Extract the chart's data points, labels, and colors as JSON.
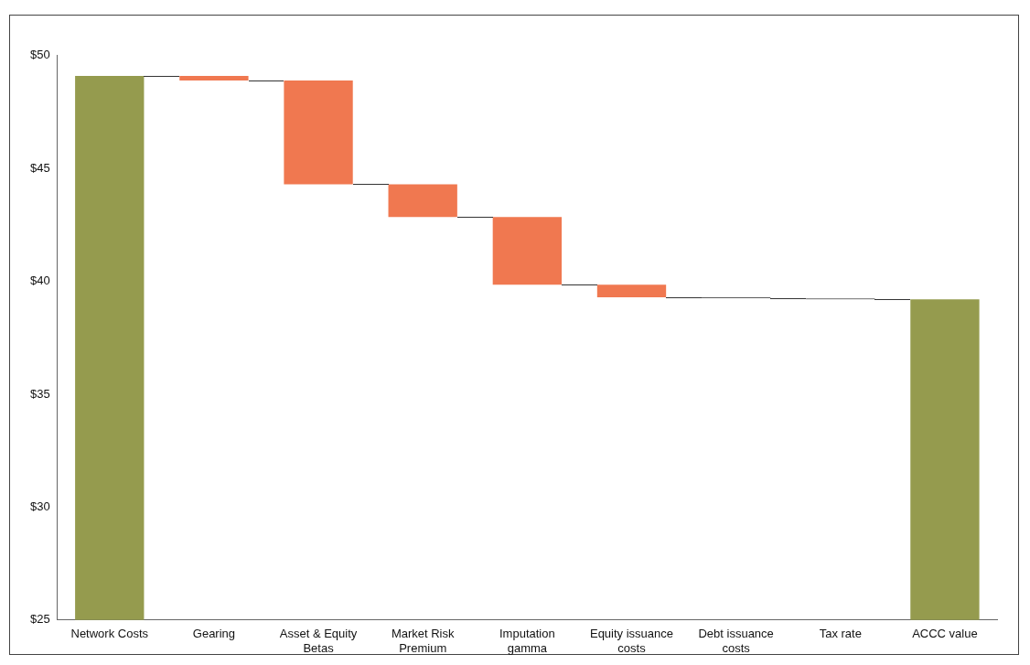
{
  "chart_data": {
    "type": "bar",
    "categories": [
      "Network Costs",
      "Gearing",
      "Asset & Equity Betas",
      "Market Risk Premium",
      "Imputation gamma",
      "Equity issuance costs",
      "Debt issuance costs",
      "Tax rate",
      "ACCC value"
    ],
    "values": [
      49.1,
      -0.2,
      -4.6,
      -1.45,
      -3.0,
      -0.55,
      -0.05,
      -0.05,
      39.2
    ],
    "base": [
      null,
      49.1,
      48.9,
      44.3,
      42.85,
      39.85,
      39.3,
      39.25,
      null
    ],
    "colors": [
      "#959b4e",
      "#f07850",
      "#f07850",
      "#f07850",
      "#f07850",
      "#f07850",
      "#5a5a5a",
      "#8a8a8a",
      "#959b4e"
    ],
    "ylim": [
      25,
      50
    ],
    "yticks": [
      {
        "value": 25,
        "label": "$25"
      },
      {
        "value": 30,
        "label": "$30"
      },
      {
        "value": 35,
        "label": "$35"
      },
      {
        "value": 40,
        "label": "$40"
      },
      {
        "value": 45,
        "label": "$45"
      },
      {
        "value": 50,
        "label": "$50"
      }
    ],
    "grid": false,
    "legend": false
  }
}
